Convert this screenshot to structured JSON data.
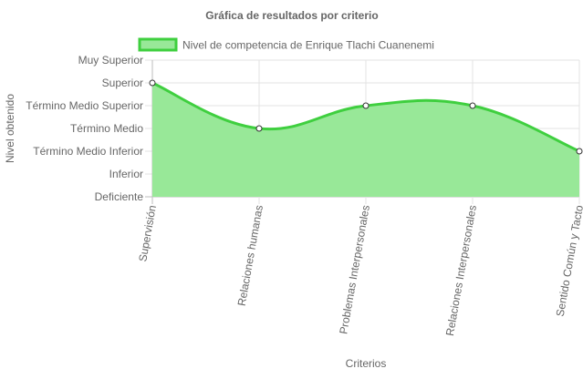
{
  "chart_data": {
    "type": "area",
    "title": "Gráfica de resultados por criterio",
    "xlabel": "Criterios",
    "ylabel": "Nivel obtenido",
    "categories": [
      "Supervisión",
      "Relaciones humanas",
      "Problemas Interpersonales",
      "Relaciones Interpersonales",
      "Sentido Común y Tacto"
    ],
    "y_levels": [
      "Deficiente",
      "Inferior",
      "Término Medio Inferior",
      "Término Medio",
      "Término Medio Superior",
      "Superior",
      "Muy Superior"
    ],
    "ylim": [
      0,
      6
    ],
    "grid": true,
    "legend_position": "top",
    "series": [
      {
        "name": "Nivel de competencia de Enrique Tlachi Cuanenemi",
        "values": [
          5,
          3,
          4,
          4,
          2
        ],
        "line_color": "#3fcf3f",
        "fill_color": "#98e898"
      }
    ]
  }
}
